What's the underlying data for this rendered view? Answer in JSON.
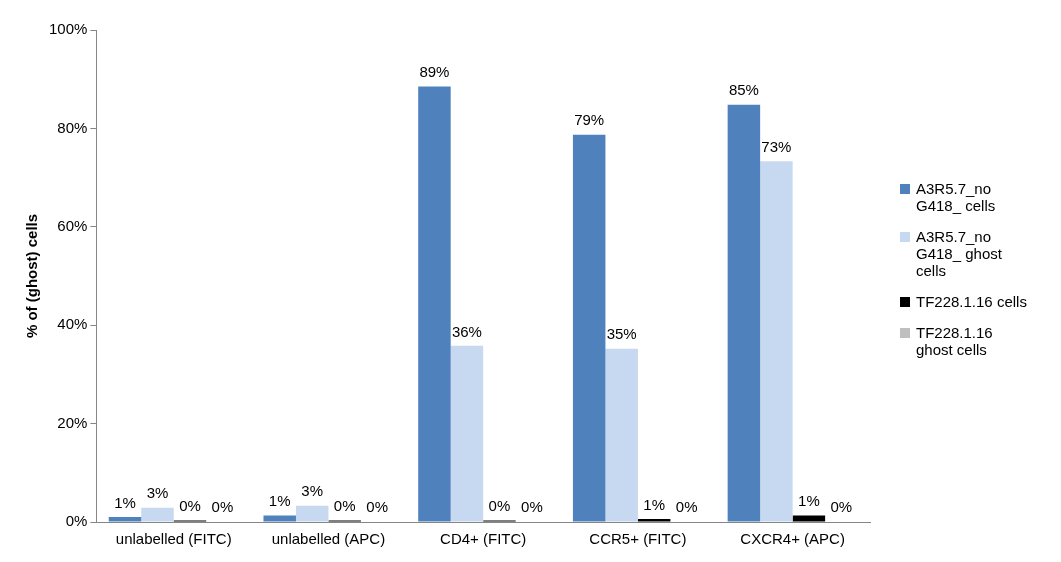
{
  "chart_data": {
    "type": "bar",
    "ylabel": "% of (ghost) cells",
    "categories": [
      "unlabelled (FITC)",
      "unlabelled (APC)",
      "CD4+ (FITC)",
      "CCR5+ (FITC)",
      "CXCR4+ (APC)"
    ],
    "series": [
      {
        "name": "A3R5.7_no G418_ cells",
        "color": "#4f81bd",
        "values": [
          1.0,
          1.3,
          88.5,
          78.7,
          84.8
        ],
        "value_labels": [
          "1%",
          "1%",
          "89%",
          "79%",
          "85%"
        ]
      },
      {
        "name": "A3R5.7_no G418_ ghost cells",
        "color": "#c6d9f0",
        "values": [
          2.9,
          3.3,
          35.8,
          35.2,
          73.3
        ],
        "value_labels": [
          "3%",
          "3%",
          "36%",
          "35%",
          "73%"
        ]
      },
      {
        "name": "TF228.1.16 cells",
        "color": "#000000",
        "values": [
          0.3,
          0.3,
          0.3,
          0.6,
          1.3
        ],
        "value_labels": [
          "0%",
          "0%",
          "0%",
          "1%",
          "1%"
        ]
      },
      {
        "name": "TF228.1.16 ghost cells",
        "color": "#bfbfbf",
        "values": [
          0.1,
          0.1,
          0.1,
          0.1,
          0.1
        ],
        "value_labels": [
          "0%",
          "0%",
          "0%",
          "0%",
          "0%"
        ]
      }
    ],
    "ylim": [
      0,
      100
    ],
    "yticks": [
      {
        "value": 0,
        "label": "0%"
      },
      {
        "value": 20,
        "label": "20%"
      },
      {
        "value": 40,
        "label": "40%"
      },
      {
        "value": 60,
        "label": "60%"
      },
      {
        "value": 80,
        "label": "80%"
      },
      {
        "value": 100,
        "label": "100%"
      }
    ],
    "grid": false,
    "legend": "right"
  }
}
